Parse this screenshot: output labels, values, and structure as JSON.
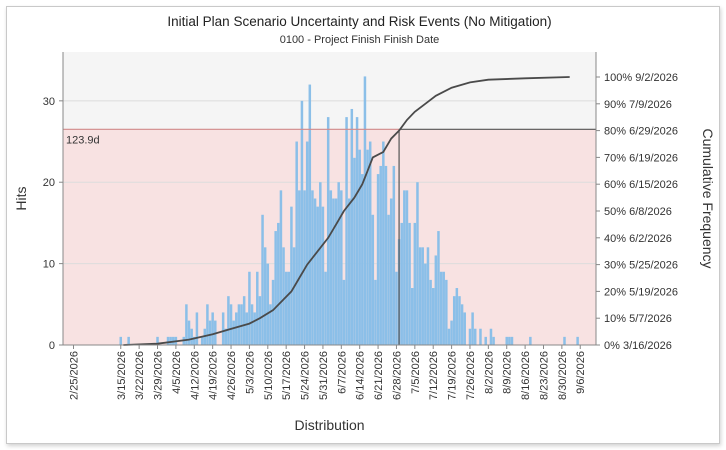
{
  "chart_data": {
    "type": "bar",
    "title": "Initial Plan Scenario Uncertainty and Risk Events (No Mitigation)",
    "subtitle": "0100 - Project Finish Finish Date",
    "xlabel": "Distribution",
    "ylabel": "Hits",
    "y2label": "Cumulative Frequency",
    "ylim": [
      0,
      36
    ],
    "yticks": [
      0,
      10,
      20,
      30
    ],
    "x_start": "2026-02-21",
    "x_end": "2026-09-12",
    "x_tick_labels": [
      "2/25/2026",
      "3/15/2026",
      "3/22/2026",
      "3/29/2026",
      "4/5/2026",
      "4/12/2026",
      "4/19/2026",
      "4/26/2026",
      "5/3/2026",
      "5/10/2026",
      "5/17/2026",
      "5/24/2026",
      "5/31/2026",
      "6/7/2026",
      "6/14/2026",
      "6/21/2026",
      "6/28/2026",
      "7/5/2026",
      "7/12/2026",
      "7/19/2026",
      "7/26/2026",
      "8/2/2026",
      "8/9/2026",
      "8/16/2026",
      "8/23/2026",
      "8/30/2026",
      "9/6/2026"
    ],
    "cumulative_axis_labels": [
      "0% 3/16/2026",
      "10% 5/7/2026",
      "20% 5/19/2026",
      "30% 5/25/2026",
      "40% 6/2/2026",
      "50% 6/8/2026",
      "60% 6/15/2026",
      "70% 6/19/2026",
      "80% 6/29/2026",
      "90% 7/9/2026",
      "100% 9/2/2026"
    ],
    "deadline_label": "123.9d",
    "deadline_hits": 26.5,
    "deadline_date": "2026-06-29",
    "bar_color": "#8bbfe8",
    "curve_color": "#4a4a4a",
    "deadline_line_color": "#d28a8a",
    "deadline_shade_color": "#f8e2e2",
    "upper_shade_color": "#f5f5f5",
    "bars": [
      {
        "date": "2026-03-15",
        "hits": 1
      },
      {
        "date": "2026-03-18",
        "hits": 1
      },
      {
        "date": "2026-03-29",
        "hits": 1
      },
      {
        "date": "2026-04-02",
        "hits": 1
      },
      {
        "date": "2026-04-03",
        "hits": 1
      },
      {
        "date": "2026-04-04",
        "hits": 1
      },
      {
        "date": "2026-04-05",
        "hits": 1
      },
      {
        "date": "2026-04-08",
        "hits": 1
      },
      {
        "date": "2026-04-09",
        "hits": 5
      },
      {
        "date": "2026-04-10",
        "hits": 3
      },
      {
        "date": "2026-04-11",
        "hits": 2
      },
      {
        "date": "2026-04-12",
        "hits": 1
      },
      {
        "date": "2026-04-13",
        "hits": 4
      },
      {
        "date": "2026-04-15",
        "hits": 1
      },
      {
        "date": "2026-04-16",
        "hits": 2
      },
      {
        "date": "2026-04-17",
        "hits": 5
      },
      {
        "date": "2026-04-18",
        "hits": 3
      },
      {
        "date": "2026-04-19",
        "hits": 4
      },
      {
        "date": "2026-04-20",
        "hits": 3
      },
      {
        "date": "2026-04-23",
        "hits": 4
      },
      {
        "date": "2026-04-24",
        "hits": 2
      },
      {
        "date": "2026-04-25",
        "hits": 6
      },
      {
        "date": "2026-04-26",
        "hits": 5
      },
      {
        "date": "2026-04-27",
        "hits": 3
      },
      {
        "date": "2026-04-28",
        "hits": 4
      },
      {
        "date": "2026-04-29",
        "hits": 5
      },
      {
        "date": "2026-04-30",
        "hits": 5
      },
      {
        "date": "2026-05-01",
        "hits": 6
      },
      {
        "date": "2026-05-02",
        "hits": 4
      },
      {
        "date": "2026-05-03",
        "hits": 9
      },
      {
        "date": "2026-05-04",
        "hits": 5
      },
      {
        "date": "2026-05-05",
        "hits": 4
      },
      {
        "date": "2026-05-06",
        "hits": 9
      },
      {
        "date": "2026-05-07",
        "hits": 6
      },
      {
        "date": "2026-05-08",
        "hits": 16
      },
      {
        "date": "2026-05-09",
        "hits": 12
      },
      {
        "date": "2026-05-10",
        "hits": 10
      },
      {
        "date": "2026-05-11",
        "hits": 5
      },
      {
        "date": "2026-05-12",
        "hits": 8
      },
      {
        "date": "2026-05-13",
        "hits": 14
      },
      {
        "date": "2026-05-14",
        "hits": 15
      },
      {
        "date": "2026-05-15",
        "hits": 19
      },
      {
        "date": "2026-05-16",
        "hits": 12
      },
      {
        "date": "2026-05-17",
        "hits": 9
      },
      {
        "date": "2026-05-18",
        "hits": 9
      },
      {
        "date": "2026-05-19",
        "hits": 17
      },
      {
        "date": "2026-05-20",
        "hits": 12
      },
      {
        "date": "2026-05-21",
        "hits": 25
      },
      {
        "date": "2026-05-22",
        "hits": 19
      },
      {
        "date": "2026-05-23",
        "hits": 30
      },
      {
        "date": "2026-05-24",
        "hits": 19
      },
      {
        "date": "2026-05-25",
        "hits": 25
      },
      {
        "date": "2026-05-26",
        "hits": 32
      },
      {
        "date": "2026-05-27",
        "hits": 19
      },
      {
        "date": "2026-05-28",
        "hits": 18
      },
      {
        "date": "2026-05-29",
        "hits": 17
      },
      {
        "date": "2026-05-30",
        "hits": 20
      },
      {
        "date": "2026-05-31",
        "hits": 17
      },
      {
        "date": "2026-06-01",
        "hits": 9
      },
      {
        "date": "2026-06-02",
        "hits": 28
      },
      {
        "date": "2026-06-03",
        "hits": 19
      },
      {
        "date": "2026-06-04",
        "hits": 18
      },
      {
        "date": "2026-06-05",
        "hits": 18
      },
      {
        "date": "2026-06-06",
        "hits": 20
      },
      {
        "date": "2026-06-07",
        "hits": 19
      },
      {
        "date": "2026-06-08",
        "hits": 8
      },
      {
        "date": "2026-06-09",
        "hits": 28
      },
      {
        "date": "2026-06-10",
        "hits": 18
      },
      {
        "date": "2026-06-11",
        "hits": 29
      },
      {
        "date": "2026-06-12",
        "hits": 23
      },
      {
        "date": "2026-06-13",
        "hits": 28
      },
      {
        "date": "2026-06-14",
        "hits": 24
      },
      {
        "date": "2026-06-15",
        "hits": 21
      },
      {
        "date": "2026-06-16",
        "hits": 33
      },
      {
        "date": "2026-06-17",
        "hits": 24
      },
      {
        "date": "2026-06-18",
        "hits": 25
      },
      {
        "date": "2026-06-19",
        "hits": 16
      },
      {
        "date": "2026-06-20",
        "hits": 8
      },
      {
        "date": "2026-06-21",
        "hits": 21
      },
      {
        "date": "2026-06-22",
        "hits": 22
      },
      {
        "date": "2026-06-23",
        "hits": 25
      },
      {
        "date": "2026-06-24",
        "hits": 22
      },
      {
        "date": "2026-06-25",
        "hits": 16
      },
      {
        "date": "2026-06-26",
        "hits": 18
      },
      {
        "date": "2026-06-27",
        "hits": 22
      },
      {
        "date": "2026-06-28",
        "hits": 9
      },
      {
        "date": "2026-06-29",
        "hits": 13
      },
      {
        "date": "2026-06-30",
        "hits": 15
      },
      {
        "date": "2026-07-01",
        "hits": 19
      },
      {
        "date": "2026-07-02",
        "hits": 19
      },
      {
        "date": "2026-07-03",
        "hits": 15
      },
      {
        "date": "2026-07-04",
        "hits": 7
      },
      {
        "date": "2026-07-05",
        "hits": 15
      },
      {
        "date": "2026-07-06",
        "hits": 20
      },
      {
        "date": "2026-07-07",
        "hits": 12
      },
      {
        "date": "2026-07-08",
        "hits": 12
      },
      {
        "date": "2026-07-09",
        "hits": 10
      },
      {
        "date": "2026-07-10",
        "hits": 12
      },
      {
        "date": "2026-07-11",
        "hits": 8
      },
      {
        "date": "2026-07-12",
        "hits": 7
      },
      {
        "date": "2026-07-13",
        "hits": 11
      },
      {
        "date": "2026-07-14",
        "hits": 14
      },
      {
        "date": "2026-07-15",
        "hits": 9
      },
      {
        "date": "2026-07-16",
        "hits": 9
      },
      {
        "date": "2026-07-17",
        "hits": 8
      },
      {
        "date": "2026-07-18",
        "hits": 2
      },
      {
        "date": "2026-07-19",
        "hits": 3
      },
      {
        "date": "2026-07-20",
        "hits": 6
      },
      {
        "date": "2026-07-21",
        "hits": 7
      },
      {
        "date": "2026-07-22",
        "hits": 6
      },
      {
        "date": "2026-07-23",
        "hits": 5
      },
      {
        "date": "2026-07-24",
        "hits": 4
      },
      {
        "date": "2026-07-26",
        "hits": 2
      },
      {
        "date": "2026-07-27",
        "hits": 4
      },
      {
        "date": "2026-07-28",
        "hits": 2
      },
      {
        "date": "2026-07-30",
        "hits": 2
      },
      {
        "date": "2026-08-01",
        "hits": 1
      },
      {
        "date": "2026-08-03",
        "hits": 2
      },
      {
        "date": "2026-08-04",
        "hits": 1
      },
      {
        "date": "2026-08-09",
        "hits": 1
      },
      {
        "date": "2026-08-10",
        "hits": 1
      },
      {
        "date": "2026-08-11",
        "hits": 1
      },
      {
        "date": "2026-08-18",
        "hits": 1
      },
      {
        "date": "2026-08-31",
        "hits": 1
      },
      {
        "date": "2026-09-05",
        "hits": 1
      }
    ],
    "cumulative": [
      {
        "date": "2026-03-16",
        "pct": 0
      },
      {
        "date": "2026-03-29",
        "pct": 0.5
      },
      {
        "date": "2026-04-10",
        "pct": 2
      },
      {
        "date": "2026-04-19",
        "pct": 4
      },
      {
        "date": "2026-04-26",
        "pct": 6
      },
      {
        "date": "2026-05-03",
        "pct": 8
      },
      {
        "date": "2026-05-07",
        "pct": 10
      },
      {
        "date": "2026-05-12",
        "pct": 13
      },
      {
        "date": "2026-05-16",
        "pct": 17
      },
      {
        "date": "2026-05-19",
        "pct": 20
      },
      {
        "date": "2026-05-22",
        "pct": 25
      },
      {
        "date": "2026-05-25",
        "pct": 30
      },
      {
        "date": "2026-05-29",
        "pct": 35
      },
      {
        "date": "2026-06-02",
        "pct": 40
      },
      {
        "date": "2026-06-05",
        "pct": 45
      },
      {
        "date": "2026-06-08",
        "pct": 50
      },
      {
        "date": "2026-06-12",
        "pct": 55
      },
      {
        "date": "2026-06-15",
        "pct": 60
      },
      {
        "date": "2026-06-17",
        "pct": 65
      },
      {
        "date": "2026-06-19",
        "pct": 70
      },
      {
        "date": "2026-06-23",
        "pct": 72
      },
      {
        "date": "2026-06-26",
        "pct": 77
      },
      {
        "date": "2026-06-29",
        "pct": 80
      },
      {
        "date": "2026-07-02",
        "pct": 84
      },
      {
        "date": "2026-07-05",
        "pct": 87
      },
      {
        "date": "2026-07-09",
        "pct": 90
      },
      {
        "date": "2026-07-13",
        "pct": 93
      },
      {
        "date": "2026-07-19",
        "pct": 96
      },
      {
        "date": "2026-07-26",
        "pct": 98
      },
      {
        "date": "2026-08-02",
        "pct": 99
      },
      {
        "date": "2026-08-16",
        "pct": 99.5
      },
      {
        "date": "2026-09-02",
        "pct": 100
      }
    ]
  }
}
